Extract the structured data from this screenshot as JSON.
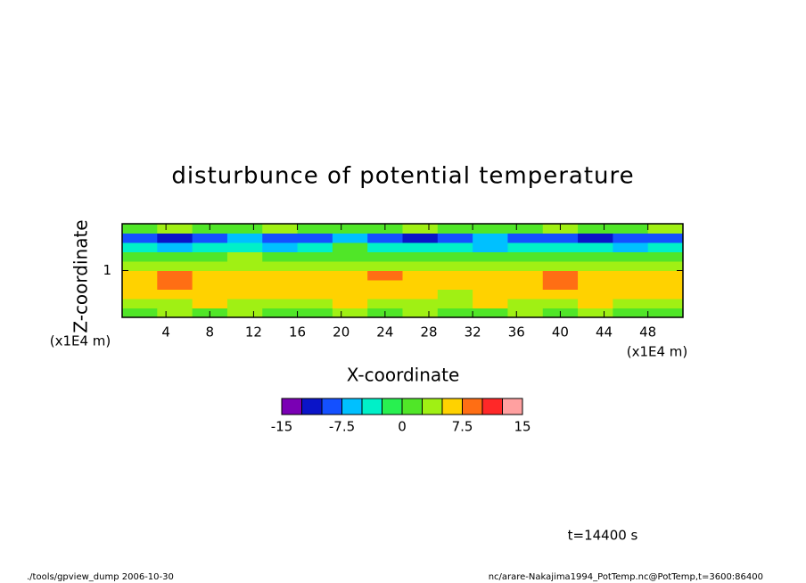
{
  "chart_data": {
    "type": "heatmap",
    "title": "disturbunce of potential temperature",
    "x_label": "X-coordinate",
    "y_label": "Z-coordinate",
    "x_unit": "(x1E4 m)",
    "y_unit": "(x1E4 m)",
    "annotation": "t=14400 s",
    "footer_left": "./tools/gpview_dump  2006-10-30",
    "footer_right": "nc/arare-Nakajima1994_PotTemp.nc@PotTemp,t=3600:86400",
    "xlim": [
      0,
      51.2
    ],
    "xticks": [
      4,
      8,
      12,
      16,
      20,
      24,
      28,
      32,
      36,
      40,
      44,
      48
    ],
    "ylim": [
      0,
      2
    ],
    "yticks": [
      1
    ],
    "x": [
      1.6,
      4.8,
      8,
      11.2,
      14.4,
      17.6,
      20.8,
      24,
      27.2,
      30.4,
      33.6,
      36.8,
      40,
      43.2,
      46.4,
      49.6
    ],
    "y": [
      0.1,
      0.3,
      0.5,
      0.7,
      0.9,
      1.1,
      1.3,
      1.5,
      1.7,
      1.9
    ],
    "z": [
      [
        1.5,
        3,
        1.5,
        3,
        1.5,
        1.5,
        3,
        1.5,
        3,
        1.5,
        1.5,
        3,
        1.5,
        3,
        1.5,
        1.5
      ],
      [
        4,
        4,
        6,
        4,
        4,
        4,
        6,
        4,
        4,
        4,
        6,
        4,
        4,
        6,
        4,
        4
      ],
      [
        6,
        6,
        6,
        6,
        6,
        6,
        6,
        6,
        6,
        4,
        6,
        6,
        6,
        6,
        6,
        6
      ],
      [
        6,
        8,
        6,
        6,
        6,
        6,
        6,
        6,
        6,
        6,
        6,
        6,
        8,
        6,
        6,
        6
      ],
      [
        6,
        8,
        6,
        6,
        6,
        6,
        6,
        8,
        6,
        6,
        6,
        6,
        8,
        6,
        6,
        6
      ],
      [
        3,
        3,
        3,
        3,
        3,
        3,
        3,
        3,
        3,
        3,
        3,
        3,
        3,
        3,
        3,
        3
      ],
      [
        1,
        1,
        1,
        3,
        1,
        1,
        1,
        1,
        1,
        1,
        1,
        1,
        1,
        1,
        1,
        1
      ],
      [
        -3,
        -6,
        -3,
        -3,
        -6,
        -3,
        1,
        -3,
        -3,
        -3,
        -6,
        -3,
        -3,
        -3,
        -6,
        -3
      ],
      [
        -9,
        -11,
        -9,
        -6,
        -9,
        -9,
        -6,
        -9,
        -11,
        -9,
        -6,
        -9,
        -9,
        -11,
        -9,
        -9
      ],
      [
        1,
        3,
        1,
        1,
        3,
        1,
        1,
        1,
        3,
        1,
        1,
        1,
        3,
        1,
        1,
        3
      ]
    ],
    "levels": [
      -15,
      -12.5,
      -10,
      -7.5,
      -5,
      -2.5,
      0,
      2.5,
      5,
      7.5,
      10,
      12.5,
      15
    ],
    "colors": [
      "#7a00b4",
      "#0a14c8",
      "#1450ff",
      "#00c0ff",
      "#00f0c8",
      "#28f050",
      "#50e628",
      "#a0f014",
      "#ffd200",
      "#ff6e14",
      "#ff2828",
      "#ffa0a0"
    ],
    "colorbar_ticks": [
      -15,
      -7.5,
      0,
      7.5,
      15
    ]
  }
}
